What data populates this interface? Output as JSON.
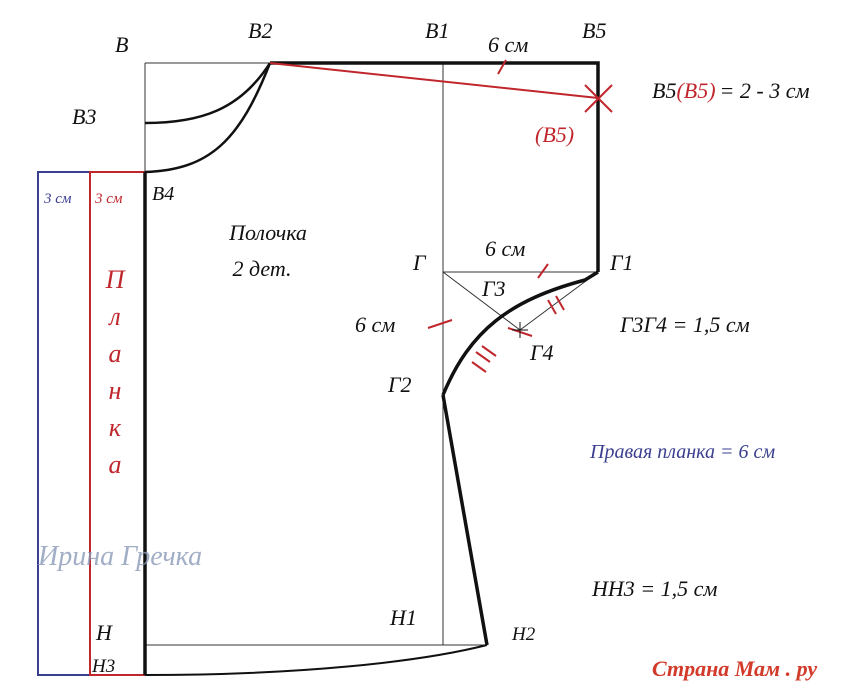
{
  "labels": {
    "v": "В",
    "v2": "В2",
    "v1": "В1",
    "top_6cm": "6 см",
    "v5": "В5",
    "v3": "В3",
    "v4": "В4",
    "v5_formula": {
      "a": "В5",
      "b": "(В5)",
      "c": "= 2 - 3 см"
    },
    "v5_moved": "(В5)",
    "blue_3cm": "3 см",
    "red_3cm": "3 см",
    "shelf": "Полочка",
    "shelf_count": "2 дет.",
    "planka_letters": [
      "П",
      "л",
      "а",
      "н",
      "к",
      "а"
    ],
    "g": "Г",
    "g_6cm": "6 см",
    "g1": "Г1",
    "g3": "Г3",
    "left_6cm": "6 см",
    "g3g4": "Г3Г4 = 1,5 см",
    "g4": "Г4",
    "g2": "Г2",
    "right_planka": "Правая планка = 6 см",
    "author": "Ирина Гречка",
    "nn3": "НН3 = 1,5 см",
    "n": "Н",
    "n1": "Н1",
    "n2": "Н2",
    "n3": "Н3",
    "logo": "Страна Мам . ру"
  }
}
